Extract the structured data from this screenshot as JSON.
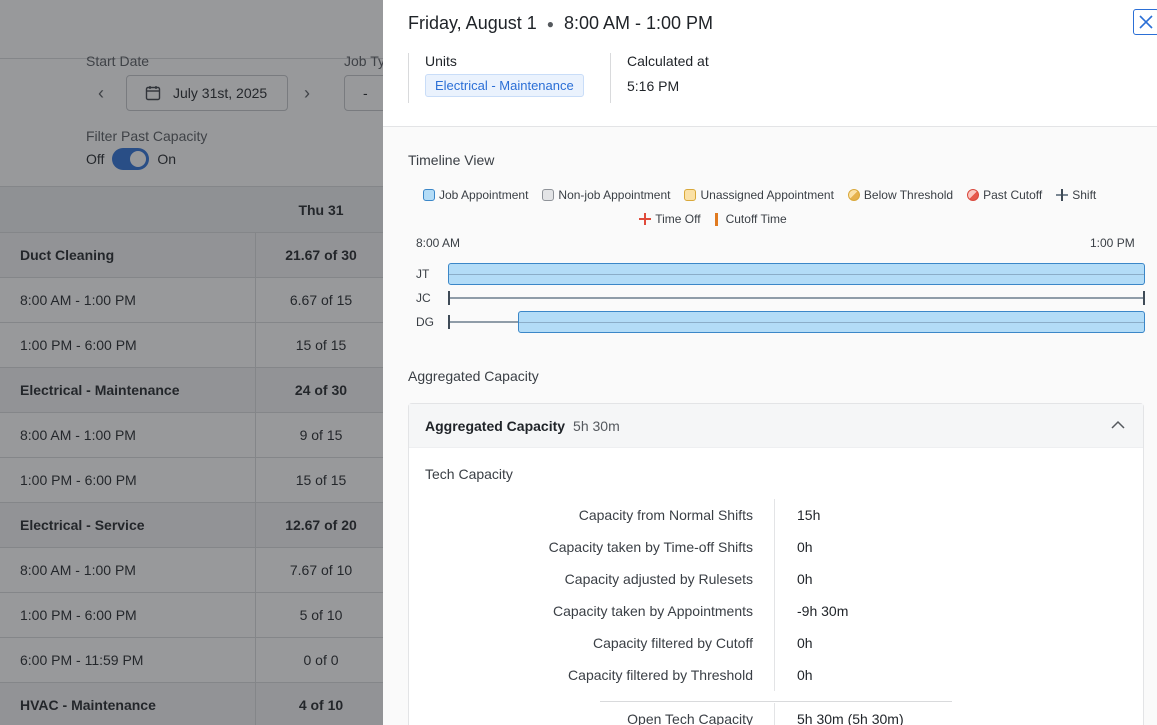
{
  "background": {
    "start_date_label": "Start Date",
    "job_type_label": "Job Ty",
    "date_value": "July 31st, 2025",
    "job_type_value": "-",
    "filter_label": "Filter Past Capacity",
    "toggle_off": "Off",
    "toggle_on": "On",
    "column_header": "Thu 31",
    "rows": [
      {
        "label": "Duct Cleaning",
        "value": "21.67 of 30",
        "group": true
      },
      {
        "label": "8:00 AM - 1:00 PM",
        "value": "6.67 of 15",
        "group": false
      },
      {
        "label": "1:00 PM - 6:00 PM",
        "value": "15 of 15",
        "group": false
      },
      {
        "label": "Electrical - Maintenance",
        "value": "24 of 30",
        "group": true
      },
      {
        "label": "8:00 AM - 1:00 PM",
        "value": "9 of 15",
        "group": false
      },
      {
        "label": "1:00 PM - 6:00 PM",
        "value": "15 of 15",
        "group": false
      },
      {
        "label": "Electrical - Service",
        "value": "12.67 of 20",
        "group": true
      },
      {
        "label": "8:00 AM - 1:00 PM",
        "value": "7.67 of 10",
        "group": false
      },
      {
        "label": "1:00 PM - 6:00 PM",
        "value": "5 of 10",
        "group": false
      },
      {
        "label": "6:00 PM - 11:59 PM",
        "value": "0 of 0",
        "group": false
      },
      {
        "label": "HVAC - Maintenance",
        "value": "4 of 10",
        "group": true
      }
    ]
  },
  "drawer": {
    "date": "Friday, August 1",
    "time_range": "8:00 AM - 1:00 PM",
    "units_label": "Units",
    "unit_tag": "Electrical - Maintenance",
    "calculated_label": "Calculated at",
    "calculated_value": "5:16 PM",
    "timeline_title": "Timeline View",
    "legend": {
      "job": "Job Appointment",
      "nonjob": "Non-job Appointment",
      "unassigned": "Unassigned Appointment",
      "below": "Below Threshold",
      "past": "Past Cutoff",
      "shift": "Shift",
      "time_off": "Time Off",
      "cutoff": "Cutoff Time"
    },
    "timeline_start": "8:00 AM",
    "timeline_end": "1:00 PM",
    "timeline_rows": [
      {
        "tech": "JT",
        "appointment_start": 0.0,
        "appointment_end": 1.0
      },
      {
        "tech": "JC",
        "appointment_start": null,
        "appointment_end": null
      },
      {
        "tech": "DG",
        "appointment_start": 0.1,
        "appointment_end": 1.0
      }
    ],
    "aggregated_section_title": "Aggregated Capacity",
    "aggregated_title": "Aggregated Capacity",
    "aggregated_total": "5h 30m",
    "tech_capacity_title": "Tech Capacity",
    "capacity": [
      {
        "label": "Capacity from Normal Shifts",
        "value": "15h"
      },
      {
        "label": "Capacity taken by Time-off Shifts",
        "value": "0h"
      },
      {
        "label": "Capacity adjusted by Rulesets",
        "value": "0h"
      },
      {
        "label": "Capacity taken by Appointments",
        "value": "-9h 30m"
      },
      {
        "label": "Capacity filtered by Cutoff",
        "value": "0h"
      },
      {
        "label": "Capacity filtered by Threshold",
        "value": "0h"
      }
    ],
    "open_capacity_label": "Open Tech Capacity",
    "open_capacity_value": "5h 30m (5h 30m)"
  }
}
